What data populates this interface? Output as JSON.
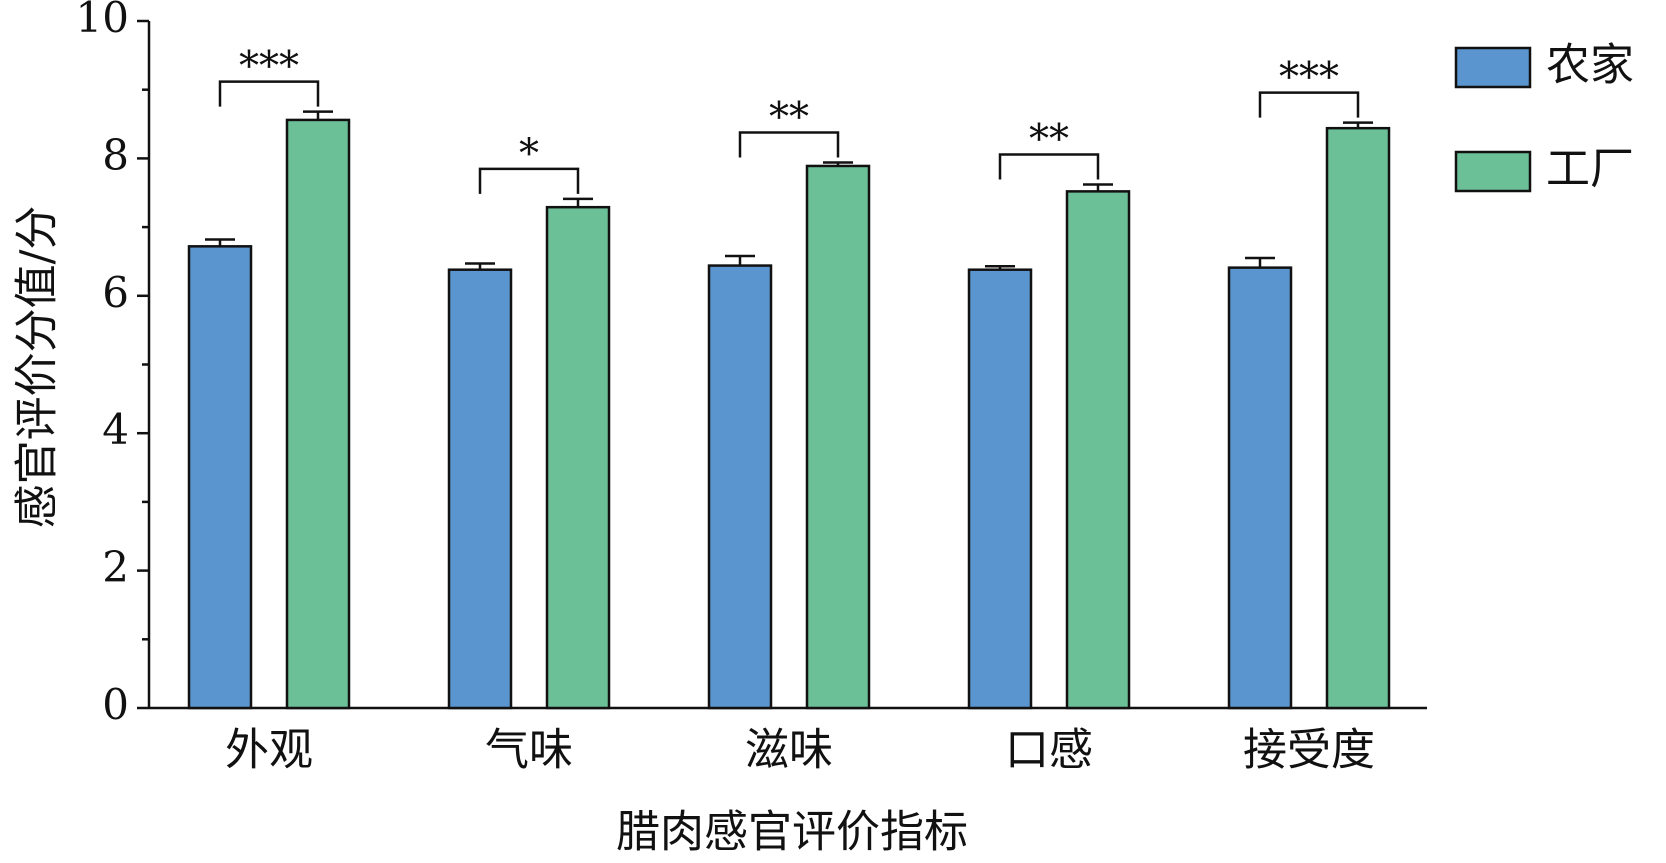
{
  "chart_data": {
    "type": "bar",
    "x_label": "腊肉感官评价指标",
    "y_label": "感官评价分值/分",
    "categories": [
      "外观",
      "气味",
      "滋味",
      "口感",
      "接受度"
    ],
    "series": [
      {
        "name": "农家",
        "color": "#5b95d0",
        "values": [
          6.72,
          6.38,
          6.44,
          6.38,
          6.41
        ],
        "errors": [
          0.1,
          0.09,
          0.14,
          0.05,
          0.14
        ]
      },
      {
        "name": "工厂",
        "color": "#6cc098",
        "values": [
          8.56,
          7.29,
          7.89,
          7.52,
          8.44
        ],
        "errors": [
          0.12,
          0.12,
          0.05,
          0.1,
          0.08
        ]
      }
    ],
    "significance": [
      "***",
      "*",
      "**",
      "**",
      "***"
    ],
    "ylim": [
      0,
      10
    ],
    "yticks": [
      0,
      2,
      4,
      6,
      8,
      10
    ],
    "legend": "top-right"
  }
}
